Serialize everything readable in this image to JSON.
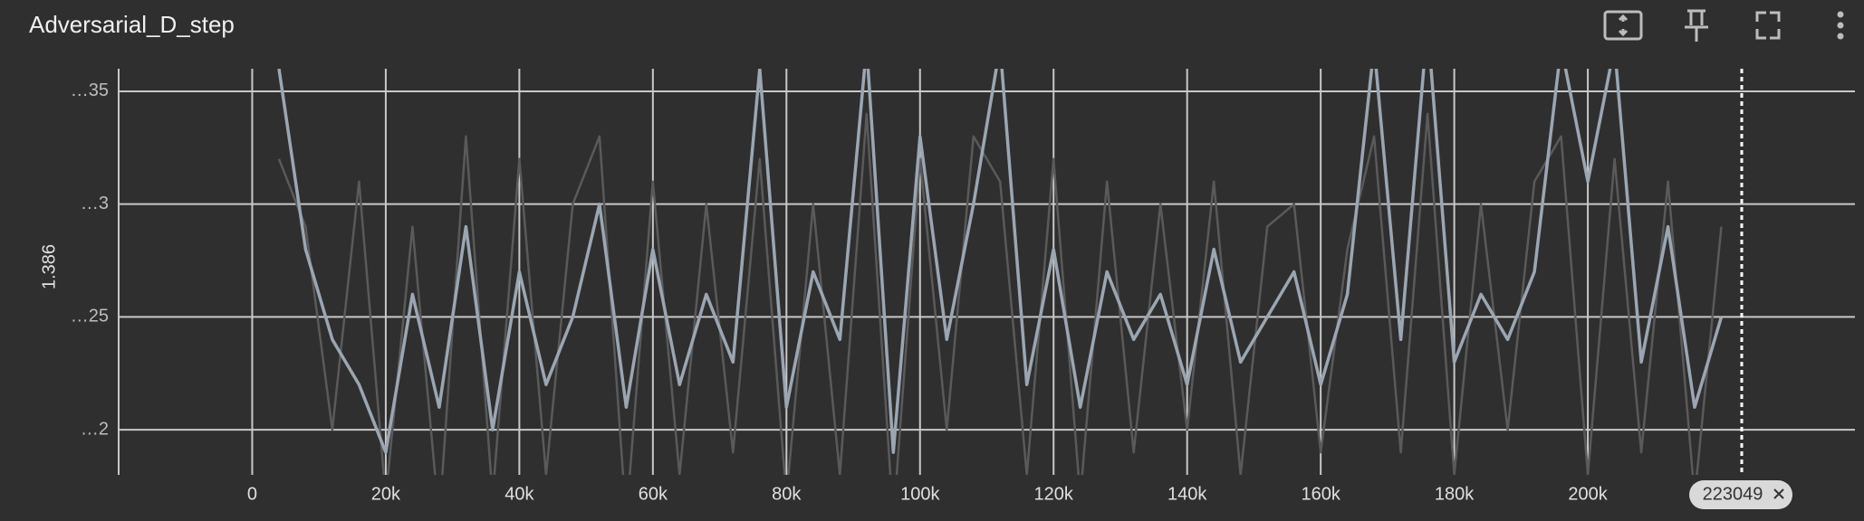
{
  "chart_data": {
    "type": "line",
    "title": "Adversarial_D_step",
    "y_label": "1.386",
    "x": [
      4000,
      8000,
      12000,
      16000,
      20000,
      24000,
      28000,
      32000,
      36000,
      40000,
      44000,
      48000,
      52000,
      56000,
      60000,
      64000,
      68000,
      72000,
      76000,
      80000,
      84000,
      88000,
      92000,
      96000,
      100000,
      104000,
      108000,
      112000,
      116000,
      120000,
      124000,
      128000,
      132000,
      136000,
      140000,
      144000,
      148000,
      152000,
      156000,
      160000,
      164000,
      168000,
      172000,
      176000,
      180000,
      184000,
      188000,
      192000,
      196000,
      200000,
      204000,
      208000,
      212000,
      216000,
      220000
    ],
    "series": [
      {
        "color": "#5a5a5a",
        "values": [
          1.38632,
          1.38629,
          1.3862,
          1.38631,
          1.38617,
          1.38629,
          1.38616,
          1.38633,
          1.38617,
          1.38632,
          1.38618,
          1.3863,
          1.38633,
          1.38616,
          1.38631,
          1.38618,
          1.3863,
          1.38619,
          1.38632,
          1.38617,
          1.3863,
          1.38618,
          1.38634,
          1.38616,
          1.38632,
          1.3862,
          1.38633,
          1.38631,
          1.38618,
          1.38632,
          1.38617,
          1.38631,
          1.38619,
          1.3863,
          1.3862,
          1.38631,
          1.38618,
          1.38629,
          1.3863,
          1.38619,
          1.38628,
          1.38633,
          1.38619,
          1.38634,
          1.38618,
          1.3863,
          1.3862,
          1.38631,
          1.38633,
          1.38618,
          1.38632,
          1.38619,
          1.38631,
          1.38617,
          1.38629
        ]
      },
      {
        "color": "#9ba6b2",
        "values": [
          1.38636,
          1.38628,
          1.38624,
          1.38622,
          1.38619,
          1.38626,
          1.38621,
          1.38629,
          1.3862,
          1.38627,
          1.38622,
          1.38625,
          1.3863,
          1.38621,
          1.38628,
          1.38622,
          1.38626,
          1.38623,
          1.38636,
          1.38621,
          1.38627,
          1.38624,
          1.38637,
          1.38619,
          1.38633,
          1.38624,
          1.3863,
          1.38637,
          1.38622,
          1.38628,
          1.38621,
          1.38627,
          1.38624,
          1.38626,
          1.38622,
          1.38628,
          1.38623,
          1.38625,
          1.38627,
          1.38622,
          1.38626,
          1.38637,
          1.38624,
          1.38638,
          1.38623,
          1.38626,
          1.38624,
          1.38627,
          1.38637,
          1.38631,
          1.38637,
          1.38623,
          1.38629,
          1.38621,
          1.38625
        ]
      }
    ],
    "xlim": [
      -20000,
      240000
    ],
    "ylim": [
      1.38618,
      1.38636
    ],
    "xticks": [
      0,
      {
        "value": 20000,
        "label": "20k"
      },
      {
        "value": 40000,
        "label": "40k"
      },
      {
        "value": 60000,
        "label": "60k"
      },
      {
        "value": 80000,
        "label": "80k"
      },
      {
        "value": 100000,
        "label": "100k"
      },
      {
        "value": 120000,
        "label": "120k"
      },
      {
        "value": 140000,
        "label": "140k"
      },
      {
        "value": 160000,
        "label": "160k"
      },
      {
        "value": 180000,
        "label": "180k"
      },
      {
        "value": 200000,
        "label": "200k"
      }
    ],
    "yticks": [
      {
        "value": 1.3862,
        "label": "…2"
      },
      {
        "value": 1.38625,
        "label": "…25"
      },
      {
        "value": 1.3863,
        "label": "…3"
      },
      {
        "value": 1.38635,
        "label": "…35"
      }
    ],
    "grid": true,
    "marker_step": 223049
  }
}
